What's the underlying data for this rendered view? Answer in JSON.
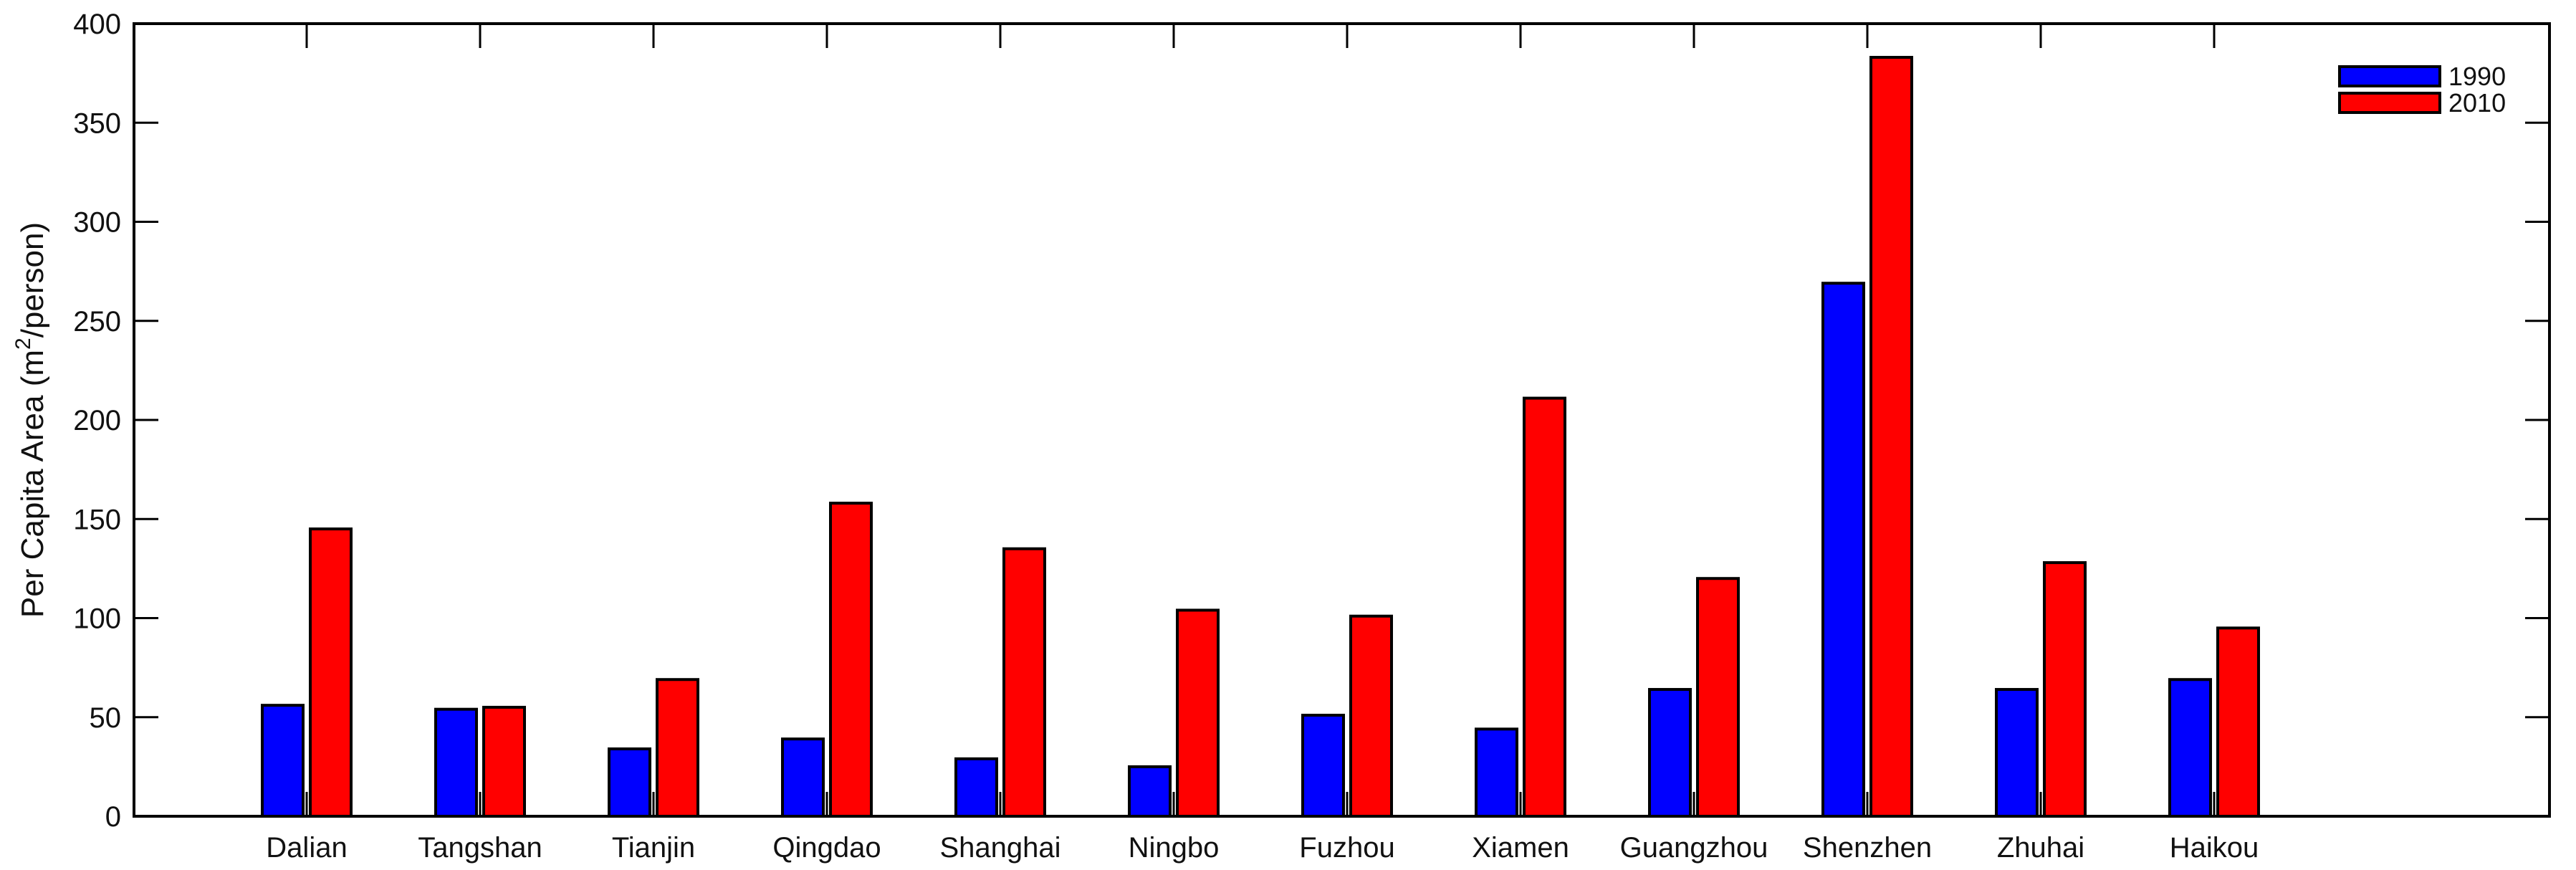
{
  "chart_data": {
    "type": "bar",
    "title": "",
    "xlabel": "",
    "ylabel": "Per Capita Area (m",
    "ylabel_sup": "2",
    "ylabel_suffix": "/person)",
    "ylim": [
      0,
      400
    ],
    "yticks": [
      0,
      50,
      100,
      150,
      200,
      250,
      300,
      350,
      400
    ],
    "grid": false,
    "legend_position": "top-right",
    "categories": [
      "Dalian",
      "Tangshan",
      "Tianjin",
      "Qingdao",
      "Shanghai",
      "Ningbo",
      "Fuzhou",
      "Xiamen",
      "Guangzhou",
      "Shenzhen",
      "Zhuhai",
      "Haikou"
    ],
    "series": [
      {
        "name": "1990",
        "color": "#0000ff",
        "values": [
          56,
          54,
          34,
          39,
          29,
          25,
          51,
          44,
          64,
          269,
          64,
          69
        ]
      },
      {
        "name": "2010",
        "color": "#ff0000",
        "values": [
          145,
          55,
          69,
          158,
          135,
          104,
          101,
          211,
          120,
          383,
          128,
          95
        ]
      }
    ]
  }
}
